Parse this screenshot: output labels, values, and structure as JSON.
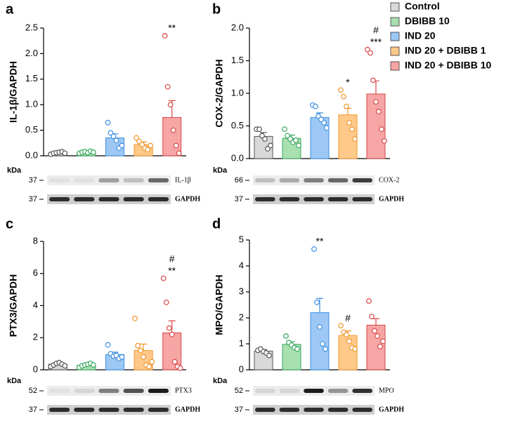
{
  "legend": [
    {
      "name": "Control",
      "color": "#d9d9d9",
      "edge": "#555555"
    },
    {
      "name": "DBIBB 10",
      "color": "#a8e0b0",
      "edge": "#3aa860"
    },
    {
      "name": "IND 20",
      "color": "#9dc8f5",
      "edge": "#3d8fe0"
    },
    {
      "name": "IND 20 + DBIBB 1",
      "color": "#ffc98a",
      "edge": "#f0962a"
    },
    {
      "name": "IND 20 + DBIBB 10",
      "color": "#f7a5a5",
      "edge": "#d94848"
    }
  ],
  "chart_data": [
    {
      "type": "bar",
      "panel": "a",
      "ylabel": "IL-1β/GAPDH",
      "ylim": [
        0,
        2.5
      ],
      "yticks": [
        {
          "value": 0,
          "label": "0.0"
        },
        0.5,
        {
          "value": 1,
          "label": "1.0"
        },
        1.5,
        {
          "value": 2,
          "label": "2.0"
        },
        2.5
      ],
      "values": [
        0.06,
        0.07,
        0.35,
        0.22,
        0.75
      ],
      "errors": [
        0.01,
        0.01,
        0.08,
        0.05,
        0.33
      ],
      "points": [
        [
          0.03,
          0.05,
          0.06,
          0.07,
          0.08,
          0.05
        ],
        [
          0.05,
          0.07,
          0.08,
          0.06,
          0.09,
          0.07
        ],
        [
          0.65,
          0.45,
          0.38,
          0.3,
          0.15,
          0.2
        ],
        [
          0.35,
          0.28,
          0.22,
          0.15,
          0.12,
          0.2
        ],
        [
          2.35,
          1.35,
          1.0,
          0.5,
          0.2,
          0.05
        ]
      ],
      "annotations": [
        {
          "index": 4,
          "text": "**"
        }
      ],
      "blot": {
        "unit": "kDa",
        "rows": [
          {
            "marker": "37",
            "protein": "IL-1β"
          },
          {
            "marker": "37",
            "protein": "GAPDH"
          }
        ]
      }
    },
    {
      "type": "bar",
      "panel": "b",
      "ylabel": "COX-2/GAPDH",
      "ylim": [
        0,
        2.0
      ],
      "yticks": [
        {
          "value": 0,
          "label": "0.0"
        },
        0.5,
        {
          "value": 1,
          "label": "1.0"
        },
        1.5,
        {
          "value": 2,
          "label": "2.0"
        }
      ],
      "values": [
        0.34,
        0.31,
        0.63,
        0.67,
        0.99
      ],
      "errors": [
        0.06,
        0.05,
        0.07,
        0.1,
        0.2
      ],
      "points": [
        [
          0.45,
          0.45,
          0.35,
          0.3,
          0.15,
          0.2
        ],
        [
          0.45,
          0.35,
          0.3,
          0.25,
          0.28,
          0.2
        ],
        [
          0.82,
          0.8,
          0.65,
          0.6,
          0.55,
          0.47
        ],
        [
          1.05,
          0.95,
          0.8,
          0.55,
          0.45,
          0.3
        ],
        [
          1.67,
          1.62,
          1.2,
          0.87,
          0.72,
          0.45,
          0.27
        ]
      ],
      "annotations": [
        {
          "index": 3,
          "text": "*"
        },
        {
          "index": 4,
          "text": "***"
        },
        {
          "index": 4,
          "text": "#"
        }
      ],
      "blot": {
        "unit": "kDa",
        "rows": [
          {
            "marker": "66",
            "protein": "COX-2"
          },
          {
            "marker": "37",
            "protein": "GAPDH"
          }
        ]
      }
    },
    {
      "type": "bar",
      "panel": "c",
      "ylabel": "PTX3/GAPDH",
      "ylim": [
        0,
        8
      ],
      "yticks": [
        0,
        2,
        4,
        6,
        8
      ],
      "values": [
        0.35,
        0.28,
        0.95,
        1.2,
        2.3
      ],
      "errors": [
        0.06,
        0.06,
        0.15,
        0.4,
        0.75
      ],
      "points": [
        [
          0.2,
          0.3,
          0.4,
          0.45,
          0.35,
          0.25
        ],
        [
          0.15,
          0.25,
          0.3,
          0.35,
          0.4,
          0.3
        ],
        [
          1.55,
          1.0,
          0.85,
          0.9,
          0.7,
          0.8
        ],
        [
          3.2,
          1.5,
          1.2,
          0.8,
          0.3,
          0.2,
          0.5
        ],
        [
          5.7,
          4.2,
          2.6,
          2.2,
          0.5,
          0.2,
          0.1
        ]
      ],
      "annotations": [
        {
          "index": 4,
          "text": "**"
        },
        {
          "index": 4,
          "text": "#"
        }
      ],
      "blot": {
        "unit": "kDa",
        "rows": [
          {
            "marker": "52",
            "protein": "PTX3"
          },
          {
            "marker": "37",
            "protein": "GAPDH"
          }
        ]
      }
    },
    {
      "type": "bar",
      "panel": "d",
      "ylabel": "MPO/GAPDH",
      "ylim": [
        0,
        5
      ],
      "yticks": [
        0,
        1,
        2,
        3,
        4,
        5
      ],
      "values": [
        0.72,
        0.98,
        2.2,
        1.32,
        1.72
      ],
      "errors": [
        0.06,
        0.1,
        0.55,
        0.18,
        0.25
      ],
      "points": [
        [
          0.75,
          0.8,
          0.7,
          0.65,
          0.55
        ],
        [
          1.3,
          1.05,
          0.95,
          0.85,
          0.8
        ],
        [
          4.65,
          2.6,
          1.65,
          1.0,
          0.8
        ],
        [
          1.7,
          1.45,
          1.35,
          1.1,
          0.85,
          0.8
        ],
        [
          2.65,
          2.05,
          1.5,
          1.3,
          0.9,
          1.1
        ]
      ],
      "annotations": [
        {
          "index": 2,
          "text": "**"
        },
        {
          "index": 3,
          "text": "#"
        }
      ],
      "blot": {
        "unit": "kDa",
        "rows": [
          {
            "marker": "52",
            "protein": "MPO"
          },
          {
            "marker": "37",
            "protein": "GAPDH"
          }
        ]
      }
    }
  ]
}
